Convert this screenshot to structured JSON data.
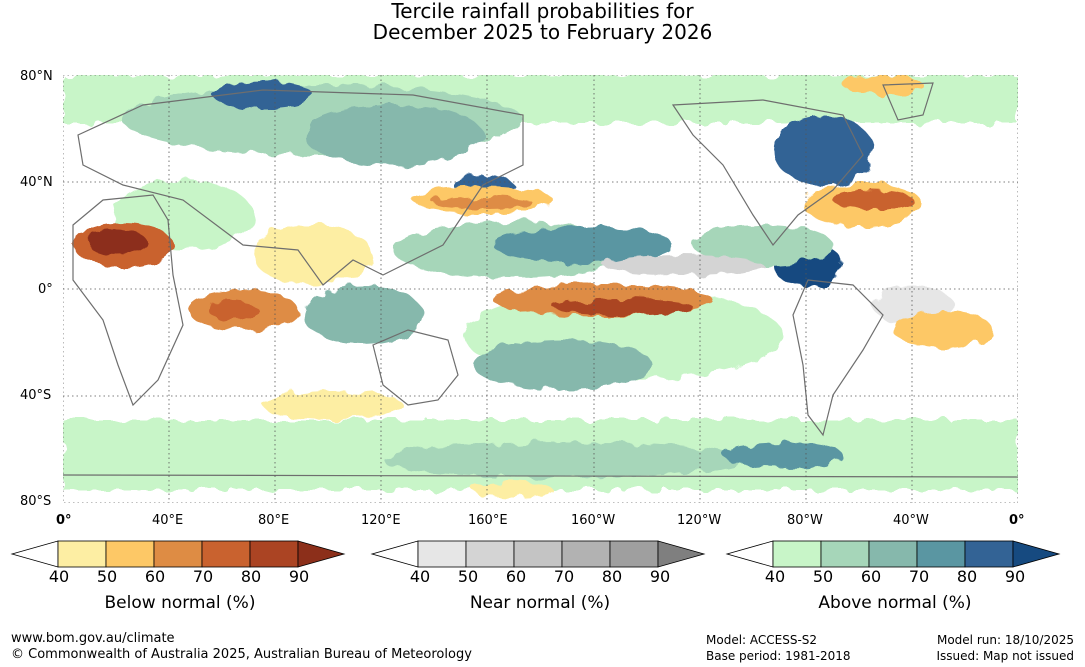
{
  "title_line1": "Tercile rainfall probabilities for",
  "title_line2": "December 2025 to February 2026",
  "lat_labels": [
    "80°N",
    "40°N",
    "0°",
    "40°S",
    "80°S"
  ],
  "lon_labels": [
    "0°",
    "40°E",
    "80°E",
    "120°E",
    "160°E",
    "160°W",
    "120°W",
    "80°W",
    "40°W",
    "0°"
  ],
  "legends": [
    {
      "caption": "Below normal (%)",
      "ticks": [
        "40",
        "50",
        "60",
        "70",
        "80",
        "90"
      ],
      "colors": [
        "#ffffff",
        "#fdeea3",
        "#fdc866",
        "#de8c44",
        "#c9622f",
        "#ab4423",
        "#8c2f1a"
      ]
    },
    {
      "caption": "Near normal (%)",
      "ticks": [
        "40",
        "50",
        "60",
        "70",
        "80",
        "90"
      ],
      "colors": [
        "#ffffff",
        "#e6e6e6",
        "#d4d4d4",
        "#c4c4c4",
        "#b2b2b2",
        "#9f9f9f",
        "#7f7f7f"
      ]
    },
    {
      "caption": "Above normal (%)",
      "ticks": [
        "40",
        "50",
        "60",
        "70",
        "80",
        "90"
      ],
      "colors": [
        "#ffffff",
        "#c8f5c8",
        "#a6d6b9",
        "#86b8ac",
        "#5a96a2",
        "#336395",
        "#164a80"
      ]
    }
  ],
  "footer": {
    "website": "www.bom.gov.au/climate",
    "copyright": "© Commonwealth of Australia 2025, Australian Bureau of Meteorology",
    "model": "Model: ACCESS-S2",
    "base_period": "Base period: 1981-2018",
    "model_run": "Model run: 18/10/2025",
    "issued": "Issued: Map not issued"
  },
  "colors": {
    "land_outline": "#6e6e6e",
    "grid_line": "#555555"
  }
}
